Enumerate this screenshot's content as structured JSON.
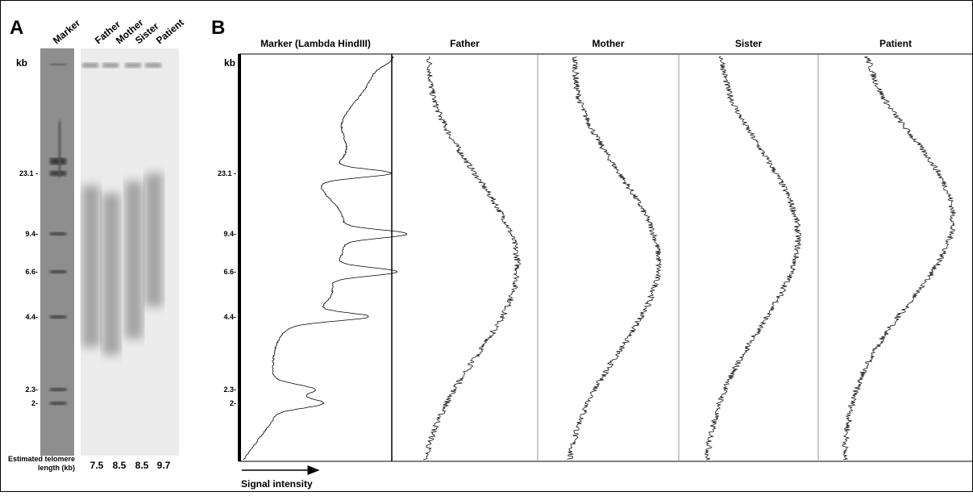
{
  "panel_a": {
    "label": "A",
    "lanes": [
      "Marker",
      "Father",
      "Mother",
      "Sister",
      "Patient"
    ],
    "unit": "kb",
    "marker_sizes": [
      "23.1 -",
      "9.4-",
      "6.6-",
      "4.4-",
      "2.3-",
      "2-"
    ],
    "estimate_label": [
      "Estimated telomere",
      "length (kb)"
    ],
    "estimates": [
      "7.5",
      "8.5",
      "8.5",
      "9.7"
    ]
  },
  "panel_b": {
    "label": "B",
    "columns": [
      "Marker (Lambda HindIII)",
      "Father",
      "Mother",
      "Sister",
      "Patient"
    ],
    "unit": "kb",
    "marker_sizes": [
      "23.1 -",
      "9.4-",
      "6.6-",
      "4.4-",
      "2.3-",
      "2-"
    ],
    "x_label": "Signal intensity"
  }
}
